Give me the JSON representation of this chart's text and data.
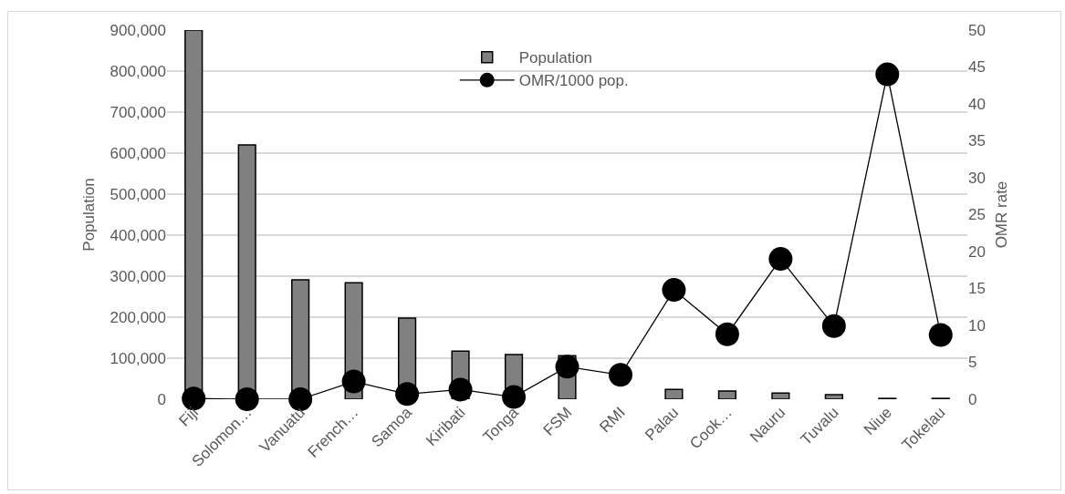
{
  "chart_data": {
    "type": "bar",
    "categories": [
      "Fiji",
      "Solomon…",
      "Vanuatu",
      "French…",
      "Samoa",
      "Kiribati",
      "Tonga",
      "FSM",
      "RMI",
      "Palau",
      "Cook…",
      "Nauru",
      "Tuvalu",
      "Niue",
      "Tokelau"
    ],
    "series": [
      {
        "name": "Population",
        "color": "#808080",
        "values": [
          900000,
          620000,
          291000,
          284000,
          198000,
          117000,
          109000,
          106000,
          null,
          24000,
          20000,
          15000,
          11000,
          2000,
          2000
        ]
      },
      {
        "name": "OMR/1000 pop.",
        "type": "line",
        "axis": "y2",
        "color": "#000000",
        "marker": "circle",
        "values": [
          0.1,
          0,
          0,
          2.4,
          0.7,
          1.3,
          0.3,
          4.4,
          3.3,
          14.8,
          8.8,
          19.0,
          9.9,
          44.0,
          8.7
        ]
      }
    ],
    "ylabel": "Population",
    "y2label": "OMR rate",
    "ylim": [
      0,
      900000
    ],
    "yticks": [
      {
        "value": 0,
        "label": "0"
      },
      {
        "value": 100000,
        "label": "100,000"
      },
      {
        "value": 200000,
        "label": "200,000"
      },
      {
        "value": 300000,
        "label": "300,000"
      },
      {
        "value": 400000,
        "label": "400,000"
      },
      {
        "value": 500000,
        "label": "500,000"
      },
      {
        "value": 600000,
        "label": "600,000"
      },
      {
        "value": 700000,
        "label": "700,000"
      },
      {
        "value": 800000,
        "label": "800,000"
      },
      {
        "value": 900000,
        "label": "900,000"
      }
    ],
    "y2lim": [
      0,
      50
    ],
    "y2ticks": [
      0,
      5,
      10,
      15,
      20,
      25,
      30,
      35,
      40,
      45,
      50
    ],
    "grid": "y",
    "legend": "top"
  }
}
